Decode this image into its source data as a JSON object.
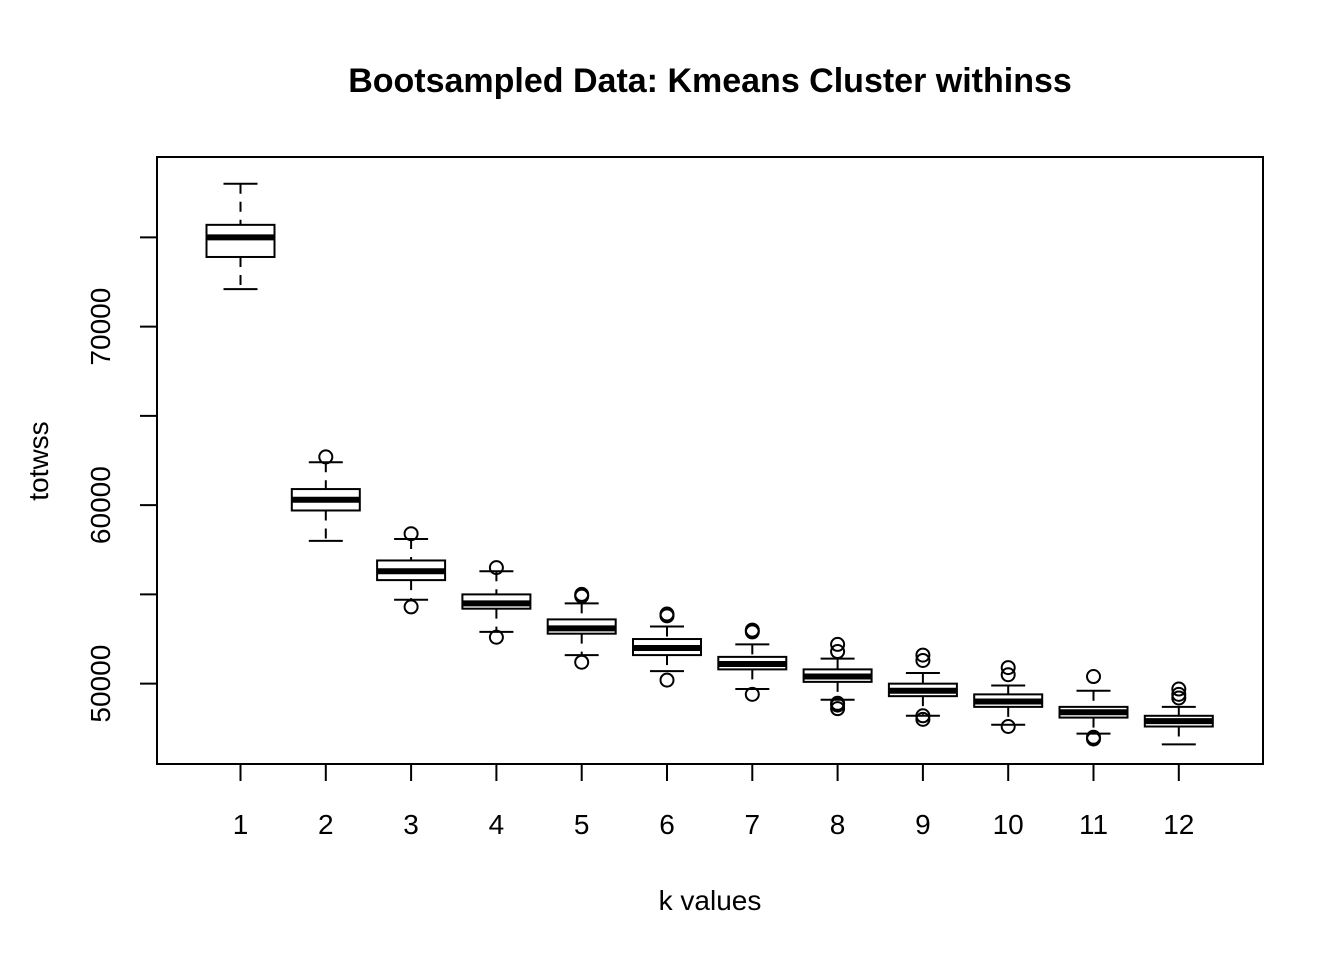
{
  "chart_data": {
    "type": "boxplot",
    "title": "Bootsampled Data: Kmeans Cluster withinss",
    "xlabel": "k values",
    "ylabel": "totwss",
    "ylim": [
      45500,
      79500
    ],
    "y_ticks": [
      50000,
      55000,
      60000,
      65000,
      70000,
      75000
    ],
    "y_tick_labels": [
      "50000",
      "",
      "60000",
      "",
      "70000",
      ""
    ],
    "grid": false,
    "legend": "none",
    "categories": [
      "1",
      "2",
      "3",
      "4",
      "5",
      "6",
      "7",
      "8",
      "9",
      "10",
      "11",
      "12"
    ],
    "boxes": [
      {
        "k": "1",
        "whisker_low": 72100,
        "q1": 73900,
        "median": 75000,
        "q3": 75700,
        "whisker_high": 78000,
        "outliers": []
      },
      {
        "k": "2",
        "whisker_low": 58000,
        "q1": 59700,
        "median": 60300,
        "q3": 60900,
        "whisker_high": 62400,
        "outliers": [
          62700
        ]
      },
      {
        "k": "3",
        "whisker_low": 54700,
        "q1": 55800,
        "median": 56300,
        "q3": 56900,
        "whisker_high": 58100,
        "outliers": [
          54300,
          58400
        ]
      },
      {
        "k": "4",
        "whisker_low": 52900,
        "q1": 54200,
        "median": 54500,
        "q3": 55000,
        "whisker_high": 56300,
        "outliers": [
          52600,
          56500
        ]
      },
      {
        "k": "5",
        "whisker_low": 51600,
        "q1": 52800,
        "median": 53100,
        "q3": 53600,
        "whisker_high": 54500,
        "outliers": [
          51200,
          54900,
          55000
        ]
      },
      {
        "k": "6",
        "whisker_low": 50700,
        "q1": 51600,
        "median": 52000,
        "q3": 52500,
        "whisker_high": 53200,
        "outliers": [
          50200,
          53800,
          53900
        ]
      },
      {
        "k": "7",
        "whisker_low": 49700,
        "q1": 50800,
        "median": 51100,
        "q3": 51500,
        "whisker_high": 52200,
        "outliers": [
          49400,
          52900,
          53000
        ]
      },
      {
        "k": "8",
        "whisker_low": 49100,
        "q1": 50100,
        "median": 50400,
        "q3": 50800,
        "whisker_high": 51400,
        "outliers": [
          48600,
          48800,
          48900,
          51800,
          52200
        ]
      },
      {
        "k": "9",
        "whisker_low": 48200,
        "q1": 49300,
        "median": 49600,
        "q3": 50000,
        "whisker_high": 50600,
        "outliers": [
          48000,
          48200,
          51300,
          51600
        ]
      },
      {
        "k": "10",
        "whisker_low": 47700,
        "q1": 48700,
        "median": 49000,
        "q3": 49400,
        "whisker_high": 49900,
        "outliers": [
          47600,
          50500,
          50900
        ]
      },
      {
        "k": "11",
        "whisker_low": 47200,
        "q1": 48100,
        "median": 48400,
        "q3": 48700,
        "whisker_high": 49600,
        "outliers": [
          46900,
          47000,
          50400
        ]
      },
      {
        "k": "12",
        "whisker_low": 46600,
        "q1": 47600,
        "median": 47900,
        "q3": 48200,
        "whisker_high": 48700,
        "outliers": [
          49200,
          49400,
          49700
        ]
      }
    ]
  }
}
